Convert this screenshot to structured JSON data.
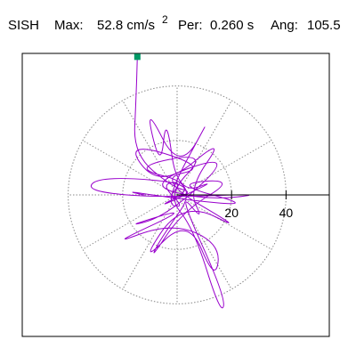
{
  "header": {
    "station": "SISH",
    "max_label": "Max:",
    "max_value": "52.8 cm/s",
    "max_exponent": "2",
    "period_label": "Per:",
    "period_value": "0.260 s",
    "angle_label": "Ang:",
    "angle_value": "105.5"
  },
  "chart_data": {
    "type": "scatter",
    "title": "SISH   Max: 52.8 cm/s^2   Per: 0.260 s   Ang: 105.5",
    "xlabel": "",
    "ylabel": "",
    "scale_ticks": [
      20,
      40
    ],
    "tick_labels": [
      "20",
      "40"
    ],
    "grid": "polar, dotted rings at 20 and 40",
    "peak_marker": {
      "x": -14.6,
      "y": 50.7,
      "color": "#009966"
    },
    "orbit_color": "#9900cc",
    "orbit_path_points": [
      [
        -14.6,
        50.7
      ],
      [
        -15.1,
        35.0
      ],
      [
        -16.0,
        15.0
      ],
      [
        -2.0,
        3.0
      ],
      [
        6.0,
        1.0
      ],
      [
        -4.0,
        -2.0
      ],
      [
        2.0,
        5.0
      ],
      [
        -6.0,
        4.0
      ],
      [
        3.0,
        -5.0
      ],
      [
        -5.0,
        -3.0
      ],
      [
        14.0,
        32.0
      ],
      [
        1.0,
        8.0
      ],
      [
        -12.0,
        34.0
      ],
      [
        -6.0,
        9.0
      ],
      [
        -4.0,
        30.0
      ],
      [
        0.0,
        0.0
      ],
      [
        16.0,
        6.0
      ],
      [
        -10.0,
        -6.0
      ],
      [
        9.0,
        4.0
      ],
      [
        -28.0,
        7.0
      ],
      [
        -34.0,
        1.5
      ],
      [
        -8.0,
        -1.0
      ],
      [
        34.0,
        0.5
      ],
      [
        10.0,
        -2.0
      ],
      [
        -12.0,
        4.0
      ],
      [
        22.0,
        16.0
      ],
      [
        -4.0,
        -8.0
      ],
      [
        -20.0,
        -12.0
      ],
      [
        6.0,
        -4.0
      ],
      [
        -26.0,
        -19.0
      ],
      [
        -2.0,
        -10.0
      ],
      [
        16.0,
        -18.0
      ],
      [
        14.0,
        -32.0
      ],
      [
        4.0,
        -8.0
      ],
      [
        -14.0,
        -26.0
      ],
      [
        2.0,
        -2.0
      ],
      [
        26.0,
        -14.0
      ],
      [
        -8.0,
        6.0
      ],
      [
        12.0,
        10.0
      ],
      [
        -20.0,
        20.0
      ],
      [
        -6.0,
        2.0
      ],
      [
        18.0,
        22.0
      ],
      [
        4.0,
        2.0
      ],
      [
        10.0,
        -10.0
      ],
      [
        0.0,
        2.0
      ],
      [
        18.0,
        -38.0
      ],
      [
        16.0,
        -44.0
      ],
      [
        6.0,
        -12.0
      ],
      [
        -4.0,
        0.0
      ],
      [
        12.0,
        16.0
      ],
      [
        -18.0,
        10.0
      ],
      [
        8.0,
        4.0
      ],
      [
        -6.0,
        -16.0
      ],
      [
        -10.0,
        -24.0
      ],
      [
        2.0,
        -6.0
      ],
      [
        22.0,
        6.0
      ],
      [
        -2.0,
        4.0
      ],
      [
        28.0,
        -4.0
      ],
      [
        4.0,
        -2.0
      ],
      [
        -22.0,
        2.0
      ],
      [
        -2.0,
        -2.0
      ]
    ]
  }
}
